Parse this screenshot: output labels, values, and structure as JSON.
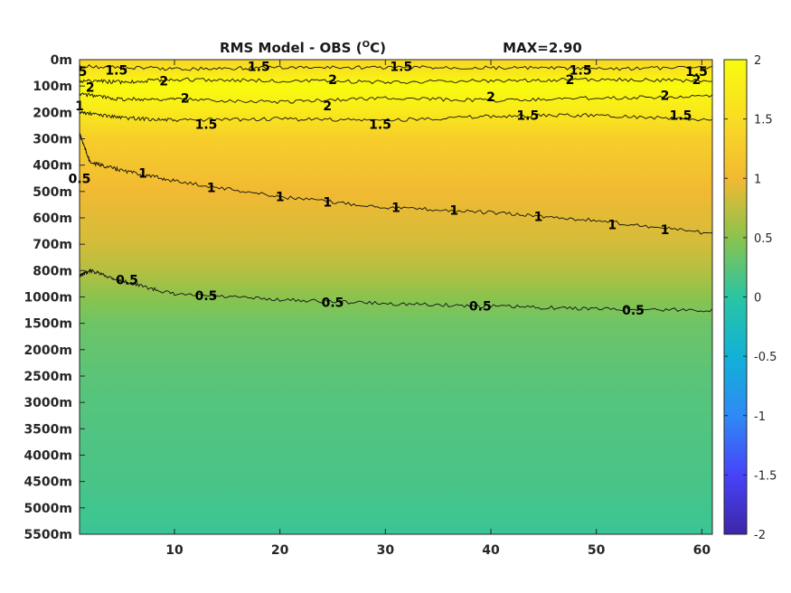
{
  "chart_data": {
    "type": "heatmap",
    "title": "RMS Model - OBS (",
    "title_unit": "O",
    "title_unit_tail": "C)",
    "max_text": "MAX=2.90",
    "xlim": [
      1,
      61
    ],
    "x_ticks": [
      10,
      20,
      30,
      40,
      50,
      60
    ],
    "y_ticks": [
      "0m",
      "100m",
      "200m",
      "300m",
      "400m",
      "500m",
      "600m",
      "700m",
      "800m",
      "1000m",
      "1500m",
      "2000m",
      "2500m",
      "3000m",
      "3500m",
      "4000m",
      "4500m",
      "5000m",
      "5500m"
    ],
    "colorbar": {
      "min": -2,
      "max": 2,
      "ticks": [
        "2",
        "1.5",
        "1",
        "0.5",
        "0",
        "-0.5",
        "-1",
        "-1.5",
        "-2"
      ],
      "colormap": [
        "#3e26a8",
        "#4743f8",
        "#2f8af6",
        "#12b1d6",
        "#2ac5a3",
        "#8bc34d",
        "#f2b932",
        "#f9dc24",
        "#f9fb0e"
      ]
    },
    "rows": [
      {
        "depth": "0m",
        "value": 1.4
      },
      {
        "depth": "100m",
        "value": 2.1
      },
      {
        "depth": "200m",
        "value": 1.7
      },
      {
        "depth": "300m",
        "value": 1.3
      },
      {
        "depth": "400m",
        "value": 1.15
      },
      {
        "depth": "500m",
        "value": 1.0
      },
      {
        "depth": "600m",
        "value": 0.92
      },
      {
        "depth": "700m",
        "value": 0.85
      },
      {
        "depth": "800m",
        "value": 0.7
      },
      {
        "depth": "1000m",
        "value": 0.5
      },
      {
        "depth": "1500m",
        "value": 0.35
      },
      {
        "depth": "2000m",
        "value": 0.3
      },
      {
        "depth": "2500m",
        "value": 0.25
      },
      {
        "depth": "3000m",
        "value": 0.22
      },
      {
        "depth": "3500m",
        "value": 0.2
      },
      {
        "depth": "4000m",
        "value": 0.18
      },
      {
        "depth": "4500m",
        "value": 0.16
      },
      {
        "depth": "5000m",
        "value": 0.12
      },
      {
        "depth": "5500m",
        "value": 0.08
      }
    ],
    "contours": [
      {
        "level": "0.5",
        "points": [
          [
            1,
            8.2
          ],
          [
            2,
            8.0
          ],
          [
            5,
            8.4
          ],
          [
            10,
            8.9
          ],
          [
            20,
            9.1
          ],
          [
            30,
            9.25
          ],
          [
            40,
            9.35
          ],
          [
            50,
            9.45
          ],
          [
            61,
            9.5
          ]
        ]
      },
      {
        "level": "1",
        "points": [
          [
            1,
            2.8
          ],
          [
            2,
            3.9
          ],
          [
            5,
            4.2
          ],
          [
            10,
            4.6
          ],
          [
            20,
            5.2
          ],
          [
            30,
            5.6
          ],
          [
            40,
            5.8
          ],
          [
            50,
            6.1
          ],
          [
            61,
            6.6
          ]
        ]
      },
      {
        "level": "1.5",
        "points": [
          [
            1,
            2.0
          ],
          [
            5,
            2.2
          ],
          [
            10,
            2.3
          ],
          [
            20,
            2.25
          ],
          [
            30,
            2.3
          ],
          [
            40,
            2.15
          ],
          [
            50,
            2.1
          ],
          [
            61,
            2.3
          ]
        ]
      },
      {
        "level": "2",
        "points": [
          [
            1,
            1.3
          ],
          [
            5,
            1.5
          ],
          [
            10,
            1.5
          ],
          [
            20,
            1.6
          ],
          [
            30,
            1.45
          ],
          [
            40,
            1.55
          ],
          [
            50,
            1.45
          ],
          [
            61,
            1.4
          ]
        ]
      },
      {
        "level": "2",
        "points": [
          [
            1,
            0.8
          ],
          [
            5,
            0.85
          ],
          [
            10,
            0.75
          ],
          [
            20,
            0.8
          ],
          [
            30,
            0.85
          ],
          [
            40,
            0.8
          ],
          [
            50,
            0.75
          ],
          [
            61,
            0.8
          ]
        ]
      },
      {
        "level": "1.5",
        "points": [
          [
            1,
            0.25
          ],
          [
            10,
            0.35
          ],
          [
            20,
            0.3
          ],
          [
            30,
            0.3
          ],
          [
            40,
            0.3
          ],
          [
            50,
            0.35
          ],
          [
            61,
            0.3
          ]
        ]
      }
    ],
    "contour_labels": [
      {
        "text": "0.5",
        "x": 5.5,
        "y": 8.35
      },
      {
        "text": "0.5",
        "x": 13,
        "y": 8.95
      },
      {
        "text": "0.5",
        "x": 25,
        "y": 9.2
      },
      {
        "text": "0.5",
        "x": 39,
        "y": 9.35
      },
      {
        "text": "0.5",
        "x": 53.5,
        "y": 9.5
      },
      {
        "text": "0.5",
        "x": 1,
        "y": 4.5
      },
      {
        "text": "1",
        "x": 7,
        "y": 4.3
      },
      {
        "text": "1",
        "x": 13.5,
        "y": 4.85
      },
      {
        "text": "1",
        "x": 20,
        "y": 5.2
      },
      {
        "text": "1",
        "x": 24.5,
        "y": 5.4
      },
      {
        "text": "1",
        "x": 31,
        "y": 5.6
      },
      {
        "text": "1",
        "x": 36.5,
        "y": 5.7
      },
      {
        "text": "1",
        "x": 44.5,
        "y": 5.95
      },
      {
        "text": "1",
        "x": 51.5,
        "y": 6.25
      },
      {
        "text": "1",
        "x": 56.5,
        "y": 6.45
      },
      {
        "text": "1",
        "x": 1,
        "y": 1.75
      },
      {
        "text": "1.5",
        "x": 13,
        "y": 2.45
      },
      {
        "text": "1.5",
        "x": 29.5,
        "y": 2.45
      },
      {
        "text": "1.5",
        "x": 43.5,
        "y": 2.1
      },
      {
        "text": "1.5",
        "x": 58,
        "y": 2.1
      },
      {
        "text": "1.5",
        "x": 4.5,
        "y": 0.4
      },
      {
        "text": "1.5",
        "x": 18,
        "y": 0.25
      },
      {
        "text": "1.5",
        "x": 31.5,
        "y": 0.25
      },
      {
        "text": "1.5",
        "x": 48.5,
        "y": 0.4
      },
      {
        "text": "1.5",
        "x": 59.5,
        "y": 0.45
      },
      {
        "text": "2",
        "x": 9,
        "y": 0.8
      },
      {
        "text": "2",
        "x": 25,
        "y": 0.75
      },
      {
        "text": "2",
        "x": 47.5,
        "y": 0.75
      },
      {
        "text": "2",
        "x": 59.5,
        "y": 0.75
      },
      {
        "text": "2",
        "x": 11,
        "y": 1.45
      },
      {
        "text": "2",
        "x": 24.5,
        "y": 1.75
      },
      {
        "text": "2",
        "x": 40,
        "y": 1.4
      },
      {
        "text": "2",
        "x": 56.5,
        "y": 1.35
      },
      {
        "text": "2",
        "x": 2,
        "y": 1.05
      },
      {
        "text": "5",
        "x": 1.3,
        "y": 0.45
      }
    ]
  }
}
